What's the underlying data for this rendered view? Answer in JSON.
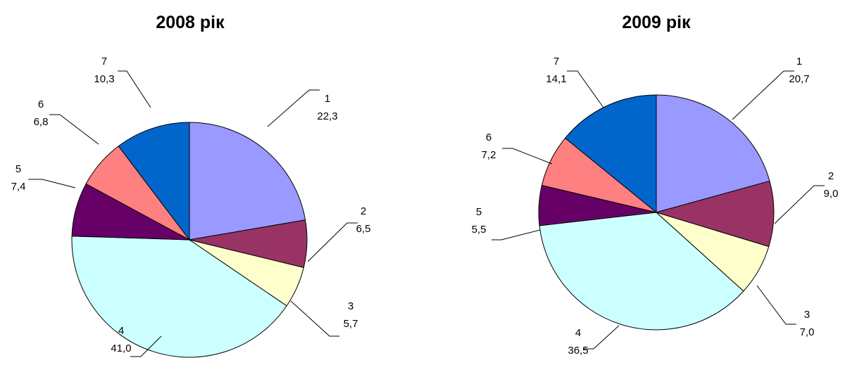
{
  "chart_data": [
    {
      "type": "pie",
      "title": "2008 рік",
      "categories": [
        "1",
        "2",
        "3",
        "4",
        "5",
        "6",
        "7"
      ],
      "values": [
        22.3,
        6.5,
        5.7,
        41.0,
        7.4,
        6.8,
        10.3
      ],
      "value_labels": [
        "22,3",
        "6,5",
        "5,7",
        "41,0",
        "7,4",
        "6,8",
        "10,3"
      ],
      "colors": [
        "#9999ff",
        "#993366",
        "#ffffcc",
        "#ccffff",
        "#660066",
        "#ff8080",
        "#0066cc"
      ],
      "legend": "none"
    },
    {
      "type": "pie",
      "title": "2009 рік",
      "categories": [
        "1",
        "2",
        "3",
        "4",
        "5",
        "6",
        "7"
      ],
      "values": [
        20.7,
        9.0,
        7.0,
        36.5,
        5.5,
        7.2,
        14.1
      ],
      "value_labels": [
        "20,7",
        "9,0",
        "7,0",
        "36,5",
        "5,5",
        "7,2",
        "14,1"
      ],
      "colors": [
        "#9999ff",
        "#993366",
        "#ffffcc",
        "#ccffff",
        "#660066",
        "#ff8080",
        "#0066cc"
      ],
      "legend": "none"
    }
  ]
}
